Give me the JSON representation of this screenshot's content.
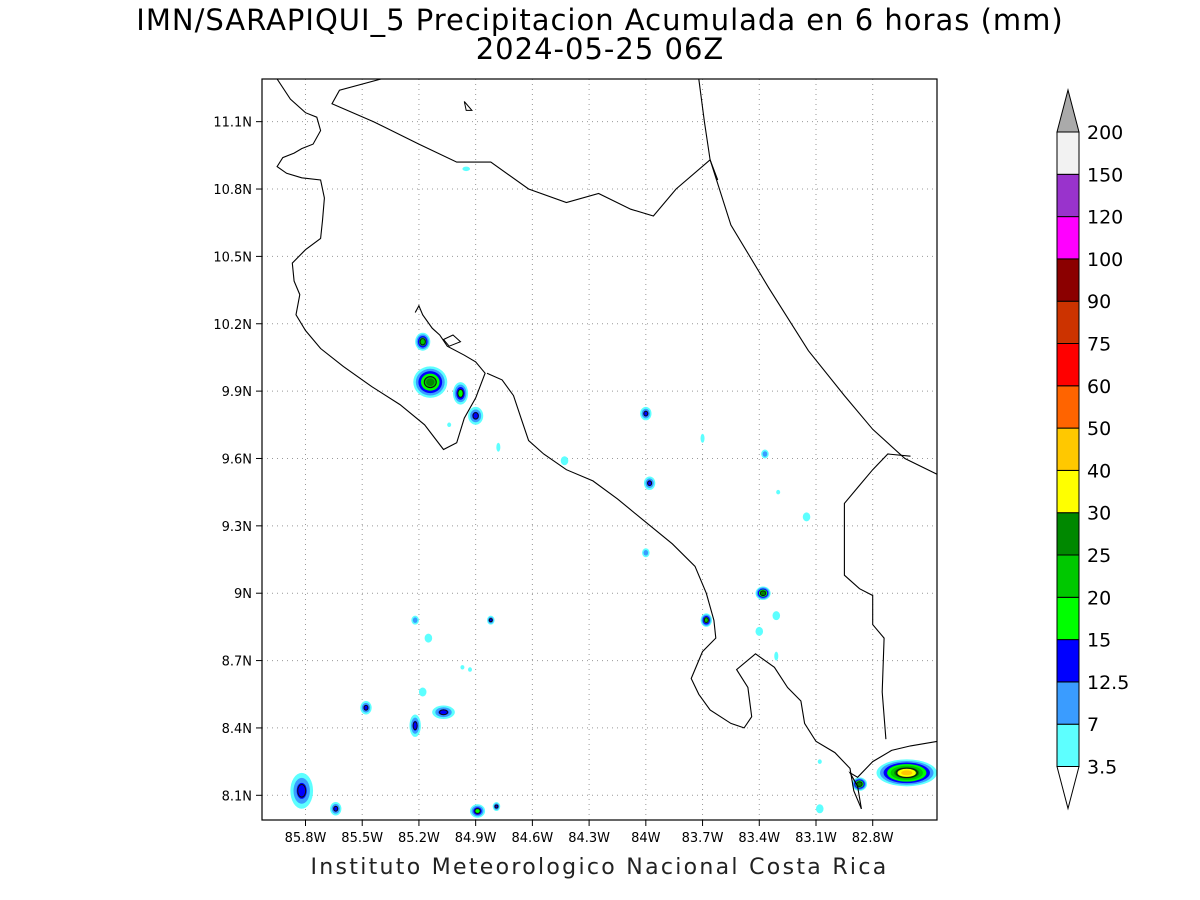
{
  "title": "IMN/SARAPIQUI_5 Precipitacion Acumulada en 6 horas (mm)",
  "subtitle": "2024-05-25 06Z",
  "footer": "Instituto Meteorologico Nacional Costa Rica",
  "map": {
    "lon_range": [
      -86.03,
      -82.46
    ],
    "lat_range": [
      7.99,
      11.29
    ],
    "lat_ticks": [
      {
        "value": 11.1,
        "label": "11.1N"
      },
      {
        "value": 10.8,
        "label": "10.8N"
      },
      {
        "value": 10.5,
        "label": "10.5N"
      },
      {
        "value": 10.2,
        "label": "10.2N"
      },
      {
        "value": 9.9,
        "label": "9.9N"
      },
      {
        "value": 9.6,
        "label": "9.6N"
      },
      {
        "value": 9.3,
        "label": "9.3N"
      },
      {
        "value": 9.0,
        "label": "9N"
      },
      {
        "value": 8.7,
        "label": "8.7N"
      },
      {
        "value": 8.4,
        "label": "8.4N"
      },
      {
        "value": 8.1,
        "label": "8.1N"
      }
    ],
    "lon_ticks": [
      {
        "value": -85.8,
        "label": "85.8W"
      },
      {
        "value": -85.5,
        "label": "85.5W"
      },
      {
        "value": -85.2,
        "label": "85.2W"
      },
      {
        "value": -84.9,
        "label": "84.9W"
      },
      {
        "value": -84.6,
        "label": "84.6W"
      },
      {
        "value": -84.3,
        "label": "84.3W"
      },
      {
        "value": -84.0,
        "label": "84W"
      },
      {
        "value": -83.7,
        "label": "83.7W"
      },
      {
        "value": -83.4,
        "label": "83.4W"
      },
      {
        "value": -83.1,
        "label": "83.1W"
      },
      {
        "value": -82.8,
        "label": "82.8W"
      }
    ],
    "grid": "dotted",
    "coastline": [
      [
        -85.95,
        11.29
      ],
      [
        -85.88,
        11.2
      ],
      [
        -85.8,
        11.14
      ],
      [
        -85.74,
        11.12
      ],
      [
        -85.72,
        11.06
      ],
      [
        -85.76,
        11.0
      ],
      [
        -85.82,
        10.98
      ],
      [
        -85.86,
        10.96
      ],
      [
        -85.92,
        10.94
      ],
      [
        -85.95,
        10.9
      ],
      [
        -85.9,
        10.87
      ],
      [
        -85.82,
        10.85
      ],
      [
        -85.72,
        10.84
      ],
      [
        -85.7,
        10.76
      ],
      [
        -85.71,
        10.66
      ],
      [
        -85.72,
        10.58
      ],
      [
        -85.8,
        10.53
      ],
      [
        -85.87,
        10.47
      ],
      [
        -85.86,
        10.39
      ],
      [
        -85.83,
        10.33
      ],
      [
        -85.85,
        10.24
      ],
      [
        -85.8,
        10.17
      ],
      [
        -85.72,
        10.09
      ],
      [
        -85.6,
        10.01
      ],
      [
        -85.45,
        9.92
      ],
      [
        -85.3,
        9.84
      ],
      [
        -85.17,
        9.75
      ],
      [
        -85.07,
        9.64
      ],
      [
        -85.0,
        9.67
      ],
      [
        -84.96,
        9.78
      ],
      [
        -84.9,
        9.87
      ],
      [
        -84.85,
        9.98
      ],
      [
        -84.9,
        10.03
      ],
      [
        -84.96,
        10.06
      ],
      [
        -85.05,
        10.1
      ],
      [
        -85.09,
        10.15
      ],
      [
        -85.13,
        10.18
      ],
      [
        -85.18,
        10.24
      ],
      [
        -85.2,
        10.28
      ],
      [
        -85.22,
        10.25
      ]
    ],
    "coastline2": [
      [
        -84.84,
        9.98
      ],
      [
        -84.76,
        9.95
      ],
      [
        -84.7,
        9.88
      ],
      [
        -84.66,
        9.78
      ],
      [
        -84.62,
        9.68
      ],
      [
        -84.54,
        9.62
      ],
      [
        -84.42,
        9.55
      ],
      [
        -84.28,
        9.5
      ],
      [
        -84.15,
        9.42
      ],
      [
        -84.02,
        9.33
      ],
      [
        -83.86,
        9.22
      ],
      [
        -83.74,
        9.12
      ],
      [
        -83.68,
        9.0
      ],
      [
        -83.64,
        8.88
      ],
      [
        -83.63,
        8.8
      ],
      [
        -83.7,
        8.74
      ],
      [
        -83.76,
        8.62
      ],
      [
        -83.72,
        8.55
      ],
      [
        -83.66,
        8.48
      ],
      [
        -83.55,
        8.42
      ],
      [
        -83.48,
        8.4
      ],
      [
        -83.44,
        8.45
      ],
      [
        -83.46,
        8.58
      ],
      [
        -83.52,
        8.66
      ],
      [
        -83.42,
        8.73
      ],
      [
        -83.32,
        8.67
      ],
      [
        -83.25,
        8.58
      ],
      [
        -83.18,
        8.52
      ],
      [
        -83.16,
        8.42
      ],
      [
        -83.1,
        8.34
      ],
      [
        -83.0,
        8.29
      ],
      [
        -82.92,
        8.22
      ],
      [
        -82.9,
        8.12
      ],
      [
        -82.86,
        8.04
      ]
    ],
    "coastline3": [
      [
        -82.86,
        8.04
      ],
      [
        -82.88,
        8.14
      ],
      [
        -82.92,
        8.2
      ],
      [
        -82.88,
        8.18
      ],
      [
        -82.8,
        8.25
      ],
      [
        -82.7,
        8.3
      ],
      [
        -82.6,
        8.32
      ],
      [
        -82.46,
        8.34
      ]
    ],
    "border_north": [
      [
        -85.4,
        11.29
      ],
      [
        -85.62,
        11.24
      ],
      [
        -85.66,
        11.18
      ],
      [
        -85.44,
        11.1
      ],
      [
        -85.2,
        11.0
      ],
      [
        -85.0,
        10.92
      ],
      [
        -84.82,
        10.92
      ],
      [
        -84.62,
        10.8
      ],
      [
        -84.42,
        10.74
      ],
      [
        -84.25,
        10.78
      ],
      [
        -84.08,
        10.71
      ],
      [
        -83.96,
        10.68
      ],
      [
        -83.84,
        10.8
      ],
      [
        -83.66,
        10.93
      ],
      [
        -83.62,
        10.84
      ]
    ],
    "caribbean_coast": [
      [
        -83.72,
        11.29
      ],
      [
        -83.69,
        11.1
      ],
      [
        -83.66,
        10.93
      ],
      [
        -83.55,
        10.64
      ],
      [
        -83.35,
        10.36
      ],
      [
        -83.14,
        10.08
      ],
      [
        -82.95,
        9.88
      ],
      [
        -82.8,
        9.73
      ],
      [
        -82.63,
        9.6
      ],
      [
        -82.46,
        9.53
      ]
    ],
    "border_panama": [
      [
        -82.6,
        9.61
      ],
      [
        -82.72,
        9.62
      ],
      [
        -82.8,
        9.55
      ],
      [
        -82.87,
        9.48
      ],
      [
        -82.95,
        9.4
      ],
      [
        -82.95,
        9.08
      ],
      [
        -82.87,
        9.02
      ],
      [
        -82.8,
        8.99
      ],
      [
        -82.8,
        8.86
      ],
      [
        -82.74,
        8.8
      ],
      [
        -82.75,
        8.56
      ],
      [
        -82.73,
        8.35
      ]
    ],
    "islands": [
      [
        [
          -84.96,
          11.19
        ],
        [
          -84.95,
          11.15
        ],
        [
          -84.92,
          11.15
        ],
        [
          -84.96,
          11.19
        ]
      ],
      [
        [
          -85.07,
          10.13
        ],
        [
          -85.02,
          10.15
        ],
        [
          -84.98,
          10.12
        ],
        [
          -85.04,
          10.1
        ],
        [
          -85.07,
          10.13
        ]
      ]
    ],
    "precip_blobs": [
      {
        "lon": -85.18,
        "lat": 10.12,
        "rx": 0.04,
        "ry": 0.04,
        "value": 20
      },
      {
        "lon": -85.14,
        "lat": 9.94,
        "rx": 0.09,
        "ry": 0.07,
        "value": 25
      },
      {
        "lon": -84.98,
        "lat": 9.89,
        "rx": 0.04,
        "ry": 0.05,
        "value": 15
      },
      {
        "lon": -84.9,
        "lat": 9.79,
        "rx": 0.04,
        "ry": 0.04,
        "value": 12.5
      },
      {
        "lon": -84.0,
        "lat": 9.8,
        "rx": 0.03,
        "ry": 0.03,
        "value": 12.5
      },
      {
        "lon": -83.98,
        "lat": 9.49,
        "rx": 0.03,
        "ry": 0.03,
        "value": 12.5
      },
      {
        "lon": -84.0,
        "lat": 9.18,
        "rx": 0.02,
        "ry": 0.02,
        "value": 7
      },
      {
        "lon": -83.37,
        "lat": 9.62,
        "rx": 0.02,
        "ry": 0.02,
        "value": 7
      },
      {
        "lon": -83.68,
        "lat": 8.88,
        "rx": 0.03,
        "ry": 0.03,
        "value": 20
      },
      {
        "lon": -83.38,
        "lat": 9.0,
        "rx": 0.04,
        "ry": 0.03,
        "value": 25
      },
      {
        "lon": -84.82,
        "lat": 8.88,
        "rx": 0.02,
        "ry": 0.02,
        "value": 12.5
      },
      {
        "lon": -85.22,
        "lat": 8.88,
        "rx": 0.02,
        "ry": 0.02,
        "value": 7
      },
      {
        "lon": -85.48,
        "lat": 8.49,
        "rx": 0.03,
        "ry": 0.03,
        "value": 12.5
      },
      {
        "lon": -85.22,
        "lat": 8.41,
        "rx": 0.03,
        "ry": 0.05,
        "value": 12.5
      },
      {
        "lon": -85.07,
        "lat": 8.47,
        "rx": 0.06,
        "ry": 0.03,
        "value": 12.5
      },
      {
        "lon": -85.82,
        "lat": 8.12,
        "rx": 0.06,
        "ry": 0.08,
        "value": 12.5
      },
      {
        "lon": -85.64,
        "lat": 8.04,
        "rx": 0.03,
        "ry": 0.03,
        "value": 12.5
      },
      {
        "lon": -84.89,
        "lat": 8.03,
        "rx": 0.04,
        "ry": 0.03,
        "value": 15
      },
      {
        "lon": -84.79,
        "lat": 8.05,
        "rx": 0.02,
        "ry": 0.02,
        "value": 12.5
      },
      {
        "lon": -82.87,
        "lat": 8.15,
        "rx": 0.04,
        "ry": 0.03,
        "value": 25
      },
      {
        "lon": -82.62,
        "lat": 8.2,
        "rx": 0.16,
        "ry": 0.06,
        "value": 40
      },
      {
        "lon": -84.43,
        "lat": 9.59,
        "rx": 0.02,
        "ry": 0.02,
        "value": 3.5
      },
      {
        "lon": -83.7,
        "lat": 9.69,
        "rx": 0.01,
        "ry": 0.02,
        "value": 3.5
      },
      {
        "lon": -84.78,
        "lat": 9.65,
        "rx": 0.01,
        "ry": 0.02,
        "value": 3.5
      },
      {
        "lon": -83.15,
        "lat": 9.34,
        "rx": 0.02,
        "ry": 0.02,
        "value": 3.5
      },
      {
        "lon": -83.3,
        "lat": 9.45,
        "rx": 0.01,
        "ry": 0.01,
        "value": 3.5
      },
      {
        "lon": -83.31,
        "lat": 8.9,
        "rx": 0.02,
        "ry": 0.02,
        "value": 3.5
      },
      {
        "lon": -83.4,
        "lat": 8.83,
        "rx": 0.02,
        "ry": 0.02,
        "value": 3.5
      },
      {
        "lon": -83.31,
        "lat": 8.72,
        "rx": 0.01,
        "ry": 0.02,
        "value": 3.5
      },
      {
        "lon": -85.15,
        "lat": 8.8,
        "rx": 0.02,
        "ry": 0.02,
        "value": 3.5
      },
      {
        "lon": -85.18,
        "lat": 8.56,
        "rx": 0.02,
        "ry": 0.02,
        "value": 3.5
      },
      {
        "lon": -84.97,
        "lat": 8.67,
        "rx": 0.01,
        "ry": 0.01,
        "value": 3.5
      },
      {
        "lon": -84.93,
        "lat": 8.66,
        "rx": 0.01,
        "ry": 0.01,
        "value": 3.5
      },
      {
        "lon": -85.04,
        "lat": 9.75,
        "rx": 0.01,
        "ry": 0.01,
        "value": 3.5
      },
      {
        "lon": -84.95,
        "lat": 10.89,
        "rx": 0.02,
        "ry": 0.01,
        "value": 3.5
      },
      {
        "lon": -83.08,
        "lat": 8.04,
        "rx": 0.02,
        "ry": 0.02,
        "value": 3.5
      },
      {
        "lon": -83.08,
        "lat": 8.25,
        "rx": 0.01,
        "ry": 0.01,
        "value": 3.5
      }
    ]
  },
  "colorbar": {
    "labels": [
      "3.5",
      "7",
      "12.5",
      "15",
      "20",
      "25",
      "30",
      "40",
      "50",
      "60",
      "75",
      "90",
      "100",
      "120",
      "150",
      "200"
    ],
    "colors": [
      "#5dffff",
      "#3a9cff",
      "#0000ff",
      "#00ff00",
      "#00c800",
      "#008800",
      "#ffff00",
      "#ffc800",
      "#ff6400",
      "#ff0000",
      "#cc3300",
      "#8b0000",
      "#ff00ff",
      "#9933cc",
      "#f2f2f2"
    ],
    "over_color": "#aaaaaa",
    "under_color": "#ffffff"
  }
}
